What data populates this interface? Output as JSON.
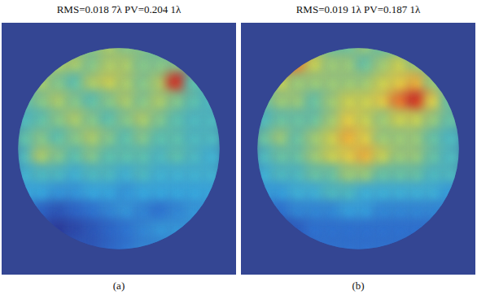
{
  "chart_data": [
    {
      "type": "heatmap",
      "title": "RMS=0.018 7λ PV=0.204 1λ",
      "label": "(a)",
      "cells": [
        [
          0.11,
          0.11,
          0.12,
          0.13,
          0.13,
          0.14,
          0.13,
          0.13,
          0.12,
          0.12,
          0.11,
          0.11
        ],
        [
          0.12,
          0.13,
          0.14,
          0.14,
          0.13,
          0.14,
          0.14,
          0.13,
          0.13,
          0.13,
          0.12,
          0.11
        ],
        [
          0.12,
          0.14,
          0.13,
          0.12,
          0.14,
          0.15,
          0.14,
          0.13,
          0.14,
          0.2,
          0.12,
          0.11
        ],
        [
          0.12,
          0.13,
          0.14,
          0.13,
          0.12,
          0.13,
          0.14,
          0.13,
          0.14,
          0.13,
          0.12,
          0.11
        ],
        [
          0.11,
          0.12,
          0.13,
          0.14,
          0.13,
          0.12,
          0.13,
          0.14,
          0.13,
          0.12,
          0.11,
          0.11
        ],
        [
          0.12,
          0.13,
          0.12,
          0.13,
          0.14,
          0.13,
          0.12,
          0.13,
          0.12,
          0.12,
          0.11,
          0.11
        ],
        [
          0.11,
          0.14,
          0.13,
          0.12,
          0.13,
          0.12,
          0.12,
          0.12,
          0.11,
          0.12,
          0.11,
          0.1
        ],
        [
          0.1,
          0.11,
          0.11,
          0.1,
          0.11,
          0.11,
          0.1,
          0.11,
          0.1,
          0.1,
          0.1,
          0.1
        ],
        [
          0.09,
          0.09,
          0.08,
          0.08,
          0.09,
          0.09,
          0.08,
          0.09,
          0.09,
          0.09,
          0.09,
          0.09
        ],
        [
          0.07,
          0.05,
          0.04,
          0.05,
          0.06,
          0.07,
          0.08,
          0.07,
          0.06,
          0.07,
          0.08,
          0.08
        ],
        [
          0.04,
          0.03,
          0.02,
          0.03,
          0.04,
          0.05,
          0.06,
          0.07,
          0.08,
          0.08,
          0.08,
          0.08
        ],
        [
          0.03,
          0.03,
          0.03,
          0.04,
          0.04,
          0.05,
          0.06,
          0.07,
          0.07,
          0.08,
          0.08,
          0.08
        ]
      ]
    },
    {
      "type": "heatmap",
      "title": "RMS=0.019 1λ PV=0.187 1λ",
      "label": "(b)",
      "cells": [
        [
          0.12,
          0.16,
          0.18,
          0.14,
          0.13,
          0.13,
          0.14,
          0.13,
          0.13,
          0.12,
          0.12,
          0.11
        ],
        [
          0.14,
          0.19,
          0.18,
          0.15,
          0.14,
          0.14,
          0.13,
          0.14,
          0.15,
          0.14,
          0.13,
          0.12
        ],
        [
          0.13,
          0.15,
          0.14,
          0.14,
          0.14,
          0.14,
          0.14,
          0.15,
          0.16,
          0.17,
          0.14,
          0.12
        ],
        [
          0.13,
          0.14,
          0.14,
          0.13,
          0.14,
          0.15,
          0.15,
          0.16,
          0.18,
          0.19,
          0.16,
          0.13
        ],
        [
          0.12,
          0.13,
          0.13,
          0.13,
          0.14,
          0.16,
          0.15,
          0.14,
          0.15,
          0.15,
          0.14,
          0.13
        ],
        [
          0.13,
          0.14,
          0.13,
          0.14,
          0.15,
          0.17,
          0.16,
          0.14,
          0.14,
          0.14,
          0.13,
          0.12
        ],
        [
          0.12,
          0.13,
          0.13,
          0.14,
          0.15,
          0.16,
          0.17,
          0.15,
          0.14,
          0.14,
          0.13,
          0.12
        ],
        [
          0.11,
          0.12,
          0.12,
          0.13,
          0.13,
          0.14,
          0.14,
          0.13,
          0.13,
          0.13,
          0.12,
          0.12
        ],
        [
          0.1,
          0.1,
          0.11,
          0.11,
          0.12,
          0.12,
          0.11,
          0.11,
          0.11,
          0.11,
          0.11,
          0.1
        ],
        [
          0.08,
          0.08,
          0.09,
          0.09,
          0.09,
          0.1,
          0.1,
          0.09,
          0.09,
          0.09,
          0.09,
          0.09
        ],
        [
          0.06,
          0.06,
          0.07,
          0.08,
          0.08,
          0.08,
          0.08,
          0.08,
          0.08,
          0.08,
          0.08,
          0.08
        ],
        [
          0.05,
          0.06,
          0.07,
          0.08,
          0.08,
          0.08,
          0.08,
          0.08,
          0.08,
          0.08,
          0.08,
          0.08
        ]
      ]
    }
  ]
}
